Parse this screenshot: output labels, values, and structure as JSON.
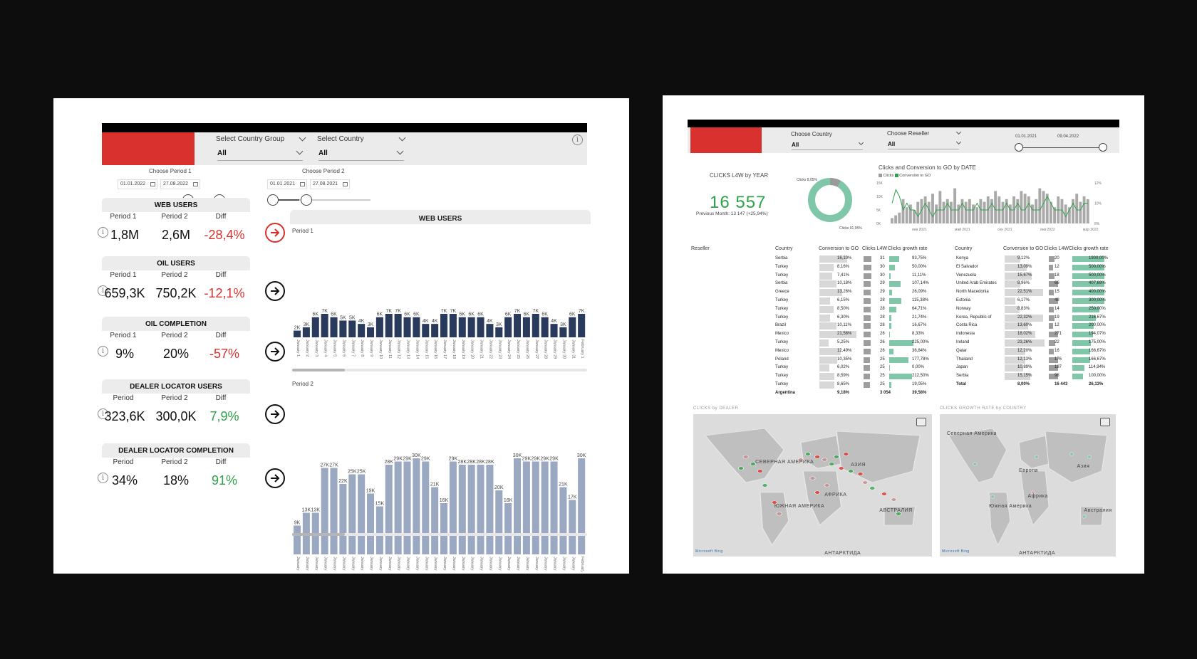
{
  "colors": {
    "accent_red": "#d9322e",
    "navy_bar": "#2a3a5c",
    "gray_bar": "#9aa8c2",
    "green": "#2ea14a",
    "teal": "#7fc7a8"
  },
  "left": {
    "filters": {
      "country_group_label": "Select Country Group",
      "country_group_value": "All",
      "country_label": "Select Country",
      "country_value": "All"
    },
    "period1": {
      "label": "Choose Period 1",
      "start": "01.01.2022",
      "end": "27.08.2022"
    },
    "period2": {
      "label": "Choose Period 2",
      "start": "01.01.2021",
      "end": "27.08.2021"
    },
    "kpis": [
      {
        "title": "WEB USERS",
        "c1": "Period 1",
        "c2": "Period 2",
        "c3": "Diff",
        "v1": "1,8M",
        "v2": "2,6M",
        "diff": "-28,4%"
      },
      {
        "title": "OIL USERS",
        "c1": "Period 1",
        "c2": "Period 2",
        "c3": "Diff",
        "v1": "659,3K",
        "v2": "750,2K",
        "diff": "-12,1%"
      },
      {
        "title": "OIL  COMPLETION",
        "c1": "Period 1",
        "c2": "Period 2",
        "c3": "Diff",
        "v1": "9%",
        "v2": "20%",
        "diff": "-57%"
      },
      {
        "title": "DEALER LOCATOR USERS",
        "c1": "Period",
        "c2": "Period 2",
        "c3": "Diff",
        "v1": "323,6K",
        "v2": "300,0K",
        "diff": "7,9%"
      },
      {
        "title": "DEALER LOCATOR COMPLETION",
        "c1": "Period",
        "c2": "Period 2",
        "c3": "Diff",
        "v1": "34%",
        "v2": "18%",
        "diff": "91%"
      }
    ],
    "chart_title": "WEB USERS",
    "p1_label": "Period 1",
    "p2_label": "Period 2"
  },
  "chart_data": [
    {
      "type": "bar",
      "title": "Period 1",
      "categories": [
        "January 1",
        "January 2",
        "January 3",
        "January 4",
        "January 5",
        "January 6",
        "January 7",
        "January 8",
        "January 9",
        "January 10",
        "January 11",
        "January 12",
        "January 13",
        "January 14",
        "January 15",
        "January 16",
        "January 17",
        "January 18",
        "January 19",
        "January 20",
        "January 21",
        "January 22",
        "January 23",
        "January 24",
        "January 25",
        "January 26",
        "January 27",
        "January 28",
        "January 29",
        "January 30",
        "January 31",
        "February 1"
      ],
      "values": [
        2,
        3,
        6,
        7,
        6,
        5,
        5,
        4,
        3,
        6,
        7,
        7,
        6,
        6,
        4,
        4,
        7,
        7,
        6,
        6,
        6,
        4,
        3,
        6,
        7,
        6,
        7,
        6,
        4,
        3,
        6,
        7
      ],
      "labels": [
        "2K",
        "3K",
        "6K",
        "7K",
        "6K",
        "5K",
        "5K",
        "4K",
        "3K",
        "6K",
        "7K",
        "7K",
        "6K",
        "6K",
        "4K",
        "4K",
        "7K",
        "7K",
        "6K",
        "6K",
        "6K",
        "4K",
        "3K",
        "6K",
        "7K",
        "6K",
        "7K",
        "6K",
        "4K",
        "3K",
        "6K",
        "7K"
      ]
    },
    {
      "type": "bar",
      "title": "Period 2",
      "categories": [
        "January 1",
        "January 2",
        "January 3",
        "January 4",
        "January 5",
        "January 6",
        "January 7",
        "January 8",
        "January 9",
        "January 10",
        "January 11",
        "January 12",
        "January 13",
        "January 14",
        "January 15",
        "January 16",
        "January 17",
        "January 18",
        "January 19",
        "January 20",
        "January 21",
        "January 22",
        "January 23",
        "January 24",
        "January 25",
        "January 26",
        "January 27",
        "January 28",
        "January 29",
        "January 30",
        "January 31",
        "February 1"
      ],
      "values": [
        9,
        13,
        13,
        27,
        27,
        22,
        25,
        25,
        19,
        15,
        28,
        29,
        29,
        30,
        29,
        21,
        16,
        29,
        28,
        28,
        28,
        28,
        20,
        16,
        30,
        29,
        29,
        29,
        29,
        21,
        17,
        30
      ],
      "labels": [
        "9K",
        "13K",
        "13K",
        "27K",
        "27K",
        "22K",
        "25K",
        "25K",
        "19K",
        "15K",
        "28K",
        "29K",
        "29K",
        "30K",
        "29K",
        "21K",
        "16K",
        "29K",
        "28K",
        "28K",
        "28K",
        "28K",
        "20K",
        "16K",
        "30K",
        "29K",
        "29K",
        "29K",
        "29K",
        "21K",
        "17K",
        "30K"
      ]
    }
  ],
  "right": {
    "filters": {
      "country_label": "Choose Country",
      "country_value": "All",
      "reseller_label": "Choose Reseller",
      "reseller_value": "All",
      "date_start": "01.01.2021",
      "date_end": "09.04.2022"
    },
    "clicks_title": "CLICKS L4W by YEAR",
    "clicks_value": "16 557",
    "clicks_prev": "Previous Month: 13 147 (+25,94%)",
    "donut": {
      "label_top": "Clicks 8,05%",
      "label_bottom": "Clicks 91,95%",
      "share_small": 8.05
    },
    "combo_title": "Clicks and Conversion to GO by DATE",
    "combo_legend": [
      "Clicks",
      "Conversion to GO"
    ],
    "combo_yticks": [
      "15K",
      "10K",
      "5K",
      "0K"
    ],
    "combo_y2ticks": [
      "12%",
      "10%",
      "8%"
    ],
    "combo_xticks": [
      "янв 2021",
      "май 2021",
      "сен 2021",
      "янв 2022",
      "мар 2022"
    ],
    "combo_clicks": [
      2,
      3,
      4,
      9,
      6,
      7,
      5,
      8,
      9,
      10,
      8,
      11,
      7,
      12,
      8,
      9,
      8,
      13,
      7,
      9,
      8,
      9,
      7,
      6,
      9,
      8,
      10,
      9,
      12,
      10,
      8,
      9,
      7,
      10,
      9,
      12,
      11,
      10,
      7,
      9,
      13,
      12,
      11,
      8,
      6,
      10,
      9,
      7,
      6,
      9,
      11,
      8,
      10,
      9
    ],
    "combo_conv": [
      10,
      12,
      11,
      9,
      10,
      9,
      9,
      8,
      9,
      10,
      9,
      8,
      9,
      9,
      9,
      10,
      9,
      9,
      9,
      10,
      9,
      9,
      9,
      10,
      9,
      9,
      9,
      10,
      9,
      9,
      9,
      10,
      9,
      9,
      10,
      9,
      9,
      10,
      9,
      9,
      9,
      10,
      11,
      10,
      9,
      9,
      9,
      8,
      9,
      10,
      9,
      9,
      10,
      10
    ],
    "table1": {
      "headers": [
        "Reseller",
        "Country",
        "Conversion to GO",
        "Clicks L4W",
        "Clicks growth rate"
      ],
      "rows": [
        [
          "Serbia",
          "16,10%",
          "31",
          "93,75%"
        ],
        [
          "Turkey",
          "8,16%",
          "30",
          "50,00%"
        ],
        [
          "Turkey",
          "7,41%",
          "30",
          "11,11%"
        ],
        [
          "Serbia",
          "10,18%",
          "29",
          "107,14%"
        ],
        [
          "Greece",
          "13,26%",
          "29",
          "26,09%"
        ],
        [
          "Turkey",
          "6,15%",
          "28",
          "115,38%"
        ],
        [
          "Turkey",
          "8,50%",
          "28",
          "64,71%"
        ],
        [
          "Turkey",
          "6,30%",
          "28",
          "21,74%"
        ],
        [
          "Brazil",
          "10,11%",
          "28",
          "16,67%"
        ],
        [
          "Mexico",
          "21,56%",
          "26",
          "8,33%"
        ],
        [
          "Turkey",
          "5,25%",
          "26",
          "225,00%"
        ],
        [
          "Mexico",
          "12,49%",
          "26",
          "36,84%"
        ],
        [
          "Poland",
          "10,35%",
          "25",
          "177,78%"
        ],
        [
          "Turkey",
          "6,02%",
          "25",
          "0,00%"
        ],
        [
          "Turkey",
          "8,59%",
          "25",
          "212,50%"
        ],
        [
          "Turkey",
          "8,65%",
          "25",
          "19,05%"
        ]
      ],
      "total": [
        "Argentina",
        "9,18%",
        "3 054",
        "39,58%"
      ]
    },
    "table2": {
      "headers": [
        "Country",
        "Conversion to GO",
        "Clicks L4W",
        "Clicks growth rate"
      ],
      "rows": [
        [
          "Kenya",
          "9,12%",
          "20",
          "1900,00%"
        ],
        [
          "El Salvador",
          "13,09%",
          "12",
          "500,00%"
        ],
        [
          "Venezuela",
          "15,67%",
          "18",
          "500,00%"
        ],
        [
          "United Arab Emirates",
          "8,96%",
          "66",
          "407,69%"
        ],
        [
          "North Macedonia",
          "22,51%",
          "15",
          "400,00%"
        ],
        [
          "Estonia",
          "6,17%",
          "48",
          "300,00%"
        ],
        [
          "Norway",
          "8,83%",
          "14",
          "250,00%"
        ],
        [
          "Korea, Republic of",
          "22,32%",
          "19",
          "216,67%"
        ],
        [
          "Costa Rica",
          "13,60%",
          "12",
          "200,00%"
        ],
        [
          "Indonesia",
          "18,02%",
          "271",
          "194,07%"
        ],
        [
          "Ireland",
          "23,26%",
          "22",
          "175,00%"
        ],
        [
          "Qatar",
          "12,20%",
          "16",
          "166,67%"
        ],
        [
          "Thailand",
          "12,13%",
          "176",
          "166,67%"
        ],
        [
          "Japan",
          "10,89%",
          "187",
          "114,94%"
        ],
        [
          "Serbia",
          "15,15%",
          "98",
          "100,00%"
        ]
      ],
      "total": [
        "Total",
        "8,00%",
        "16 443",
        "26,13%"
      ]
    },
    "map1_title": "CLICKS by DEALER",
    "map2_title": "CLICKS GROWTH RATE by COUNTRY",
    "map1_labels": [
      "СЕВЕРНАЯ АМЕРИКА",
      "АФРИКА",
      "АЗИЯ",
      "ЮЖНАЯ АМЕРИКА",
      "АВСТРАЛИЯ",
      "АНТАРКТИДА"
    ],
    "map2_labels": [
      "Северная Америка",
      "Европа",
      "Азия",
      "Африка",
      "Южная Америка",
      "Австралия",
      "АНТАРКТИДА"
    ],
    "map_credit": "Microsoft Bing"
  }
}
